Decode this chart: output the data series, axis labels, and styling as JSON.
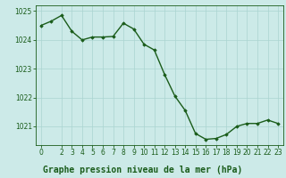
{
  "x": [
    0,
    1,
    2,
    3,
    4,
    5,
    6,
    7,
    8,
    9,
    10,
    11,
    12,
    13,
    14,
    15,
    16,
    17,
    18,
    19,
    20,
    21,
    22,
    23
  ],
  "y": [
    1024.5,
    1024.65,
    1024.85,
    1024.3,
    1024.0,
    1024.1,
    1024.1,
    1024.12,
    1024.58,
    1024.38,
    1023.85,
    1023.65,
    1022.8,
    1022.05,
    1021.55,
    1020.75,
    1020.55,
    1020.58,
    1020.72,
    1021.0,
    1021.1,
    1021.1,
    1021.22,
    1021.1
  ],
  "line_color": "#1a5c1a",
  "marker": "D",
  "marker_size": 1.8,
  "bg_color": "#cceae8",
  "grid_color": "#aad4d0",
  "title": "Graphe pression niveau de la mer (hPa)",
  "xlim": [
    -0.5,
    23.5
  ],
  "ylim": [
    1020.35,
    1025.2
  ],
  "yticks": [
    1021,
    1022,
    1023,
    1024,
    1025
  ],
  "xticks": [
    0,
    2,
    3,
    4,
    5,
    6,
    7,
    8,
    9,
    10,
    11,
    12,
    13,
    14,
    15,
    16,
    17,
    18,
    19,
    20,
    21,
    22,
    23
  ],
  "title_fontsize": 7.0,
  "tick_fontsize": 5.5,
  "line_width": 1.0
}
